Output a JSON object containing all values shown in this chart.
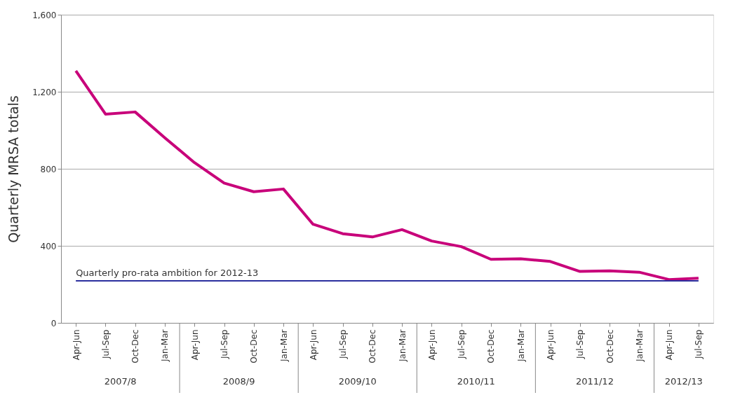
{
  "chart_data": {
    "type": "line",
    "ylabel": "Quarterly MRSA totals",
    "categories": [
      "Apr-Jun",
      "Jul-Sep",
      "Oct-Dec",
      "Jan-Mar",
      "Apr-Jun",
      "Jul-Sep",
      "Oct-Dec",
      "Jan-Mar",
      "Apr-Jun",
      "Jul-Sep",
      "Oct-Dec",
      "Jan-Mar",
      "Apr-Jun",
      "Jul-Sep",
      "Oct-Dec",
      "Jan-Mar",
      "Apr-Jun",
      "Jul-Sep",
      "Oct-Dec",
      "Jan-Mar",
      "Apr-Jun",
      "Jul-Sep"
    ],
    "series": [
      {
        "color": "#c8007a",
        "values": [
          1309,
          1084,
          1095,
          961,
          832,
          726,
          681,
          695,
          512,
          463,
          446,
          484,
          425,
          396,
          330,
          333,
          319,
          267,
          270,
          263,
          225,
          232
        ]
      }
    ],
    "ylim": [
      0,
      1600
    ],
    "yticks": [
      0,
      {
        "value": 400,
        "label": "400"
      },
      {
        "value": 800,
        "label": "800"
      },
      {
        "value": 1200,
        "label": "1,200"
      },
      {
        "value": 1600,
        "label": "1,600"
      }
    ],
    "grid": "y",
    "marker": "none",
    "line_style": "solid",
    "ref_lines": [
      {
        "axis": "y",
        "value": 218,
        "label": "Quarterly pro-rata ambition for 2012-13",
        "color": "#2b2f9e"
      }
    ],
    "annotations": [
      "2007/8",
      "2008/9",
      "2009/10",
      "2010/11",
      "2011/12",
      "2012/13"
    ]
  }
}
